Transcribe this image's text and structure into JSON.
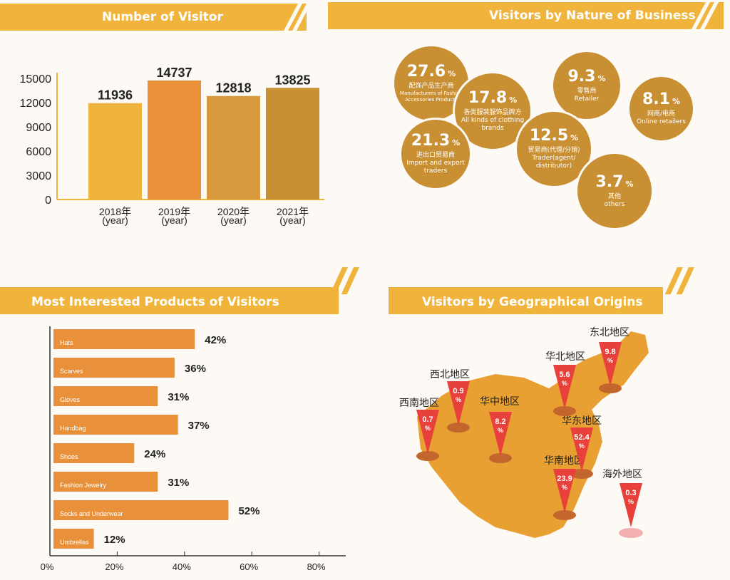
{
  "panels": {
    "visitors": {
      "title": "Number of Visitor"
    },
    "business": {
      "title": "Visitors by Nature of Business"
    },
    "products": {
      "title": "Most Interested Products of Visitors"
    },
    "geo": {
      "title": "Visitors by Geographical Origins"
    }
  },
  "colors": {
    "header": "#f0b43c",
    "bubble": "#c98f33",
    "bar_products": "#e8913a",
    "pin": "#e8403a"
  },
  "chart_data": [
    {
      "type": "bar",
      "title": "Number of Visitor",
      "categories": [
        "2018年\n(year)",
        "2019年\n(year)",
        "2020年\n(year)",
        "2021年\n(year)"
      ],
      "category_lines": [
        [
          "2018年",
          "(year)"
        ],
        [
          "2019年",
          "(year)"
        ],
        [
          "2020年",
          "(year)"
        ],
        [
          "2021年",
          "(year)"
        ]
      ],
      "values": [
        11936,
        14737,
        12818,
        13825
      ],
      "bar_colors": [
        "#f0b43c",
        "#e8913a",
        "#d99a3e",
        "#c98f33"
      ],
      "ylim": [
        0,
        15000
      ],
      "yticks": [
        0,
        3000,
        6000,
        9000,
        12000,
        15000
      ]
    },
    {
      "type": "pie",
      "title": "Visitors by Nature of Business",
      "slices": [
        {
          "value": "27.6",
          "zh": "配饰产品生产商",
          "en": "Manufacturers of Fashion Accessories Products"
        },
        {
          "value": "17.8",
          "zh": "各类服装服饰品牌方",
          "en": "All kinds of clothing brands"
        },
        {
          "value": "21.3",
          "zh": "进出口贸易商",
          "en": "Import and export traders"
        },
        {
          "value": "9.3",
          "zh": "零售商",
          "en": "Retailer"
        },
        {
          "value": "12.5",
          "zh": "贸易商(代理/分销)",
          "en": "Trader(agent/ distributor)"
        },
        {
          "value": "8.1",
          "zh": "网商/电商",
          "en": "Online retailers"
        },
        {
          "value": "3.7",
          "zh": "其他",
          "en": "others"
        }
      ],
      "unit": "%"
    },
    {
      "type": "bar",
      "orientation": "horizontal",
      "title": "Most Interested Products of Visitors",
      "categories": [
        "Hats",
        "Scarves",
        "Gloves",
        "Handbag",
        "Shoes",
        "Fashion Jewelry",
        "Socks and Underwear",
        "Umbrellas"
      ],
      "values": [
        42,
        36,
        31,
        37,
        24,
        31,
        52,
        12
      ],
      "labels": [
        "42%",
        "36%",
        "31%",
        "37%",
        "24%",
        "31%",
        "52%",
        "12%"
      ],
      "xlim": [
        0,
        90
      ],
      "xticks": [
        "0%",
        "20%",
        "40%",
        "60%",
        "80%"
      ]
    },
    {
      "type": "map",
      "title": "Visitors by Geographical Origins",
      "regions": [
        {
          "name": "西南地区",
          "value": "0.7",
          "unit": "%"
        },
        {
          "name": "西北地区",
          "value": "0.9",
          "unit": "%"
        },
        {
          "name": "华中地区",
          "value": "8.2",
          "unit": "%"
        },
        {
          "name": "华北地区",
          "value": "5.6",
          "unit": "%"
        },
        {
          "name": "东北地区",
          "value": "9.8",
          "unit": "%"
        },
        {
          "name": "华东地区",
          "value": "52.4",
          "unit": "%"
        },
        {
          "name": "华南地区",
          "value": "23.9",
          "unit": "%"
        },
        {
          "name": "海外地区",
          "value": "0.3",
          "unit": "%"
        }
      ]
    }
  ]
}
